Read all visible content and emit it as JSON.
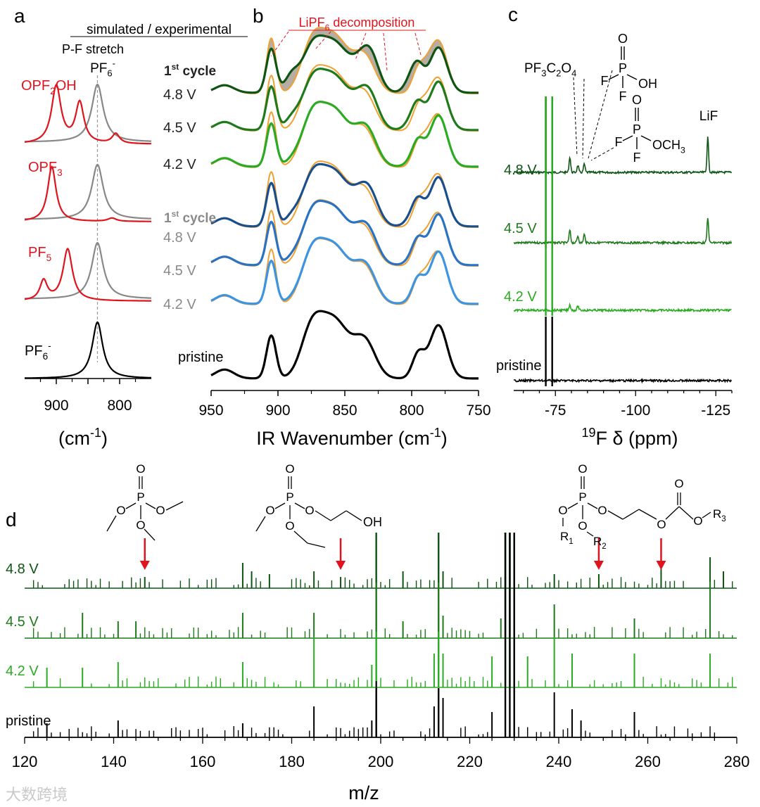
{
  "colors": {
    "black": "#000000",
    "red": "#e0141e",
    "gray": "#888888",
    "orange": "#f0a030",
    "g_dark": "#0e5514",
    "g_mid": "#1f7a1c",
    "g_light": "#2aab22",
    "b_dark": "#1a4f8e",
    "b_mid": "#2a72c4",
    "b_light": "#3b95e3",
    "fill": "#b7ada5"
  },
  "panel_labels": {
    "a": "a",
    "b": "b",
    "c": "c",
    "d": "d"
  },
  "chart_data": [
    {
      "panel": "a",
      "type": "line",
      "title": "simulated / experimental",
      "subtitle": "P-F stretch",
      "xlabel": "(cm-1)",
      "xlim": [
        950,
        750
      ],
      "xticks": [
        900,
        850,
        800
      ],
      "xtick_labels": [
        "900",
        "800"
      ],
      "reference_line": 835,
      "reference_label": "PF6-",
      "series": [
        {
          "name": "OPF2OH",
          "simulated_peaks": [
            900,
            863,
            806
          ],
          "experimental_peak": 835
        },
        {
          "name": "OPF3",
          "simulated_peaks": [
            907,
            812
          ],
          "experimental_peak": 835
        },
        {
          "name": "PF5",
          "simulated_peaks": [
            920,
            882
          ],
          "experimental_peak": 835
        },
        {
          "name": "PF6-",
          "simulated_peaks": [
            835
          ]
        }
      ]
    },
    {
      "panel": "b",
      "type": "line",
      "xlabel": "IR Wavenumber (cm-1)",
      "xlim": [
        950,
        750
      ],
      "xticks": [
        950,
        900,
        850,
        800,
        750
      ],
      "xtick_labels": [
        "950",
        "900",
        "850",
        "800",
        "750"
      ],
      "annotation": "LiPF6 decomposition",
      "groups": [
        {
          "label": "1st cycle",
          "series": [
            "4.8 V",
            "4.5 V",
            "4.2 V"
          ],
          "color": "green"
        },
        {
          "label": "1st cycle",
          "series": [
            "4.8 V",
            "4.5 V",
            "4.2 V"
          ],
          "color": "blue"
        }
      ],
      "reference_series": "pristine",
      "peaks": [
        940,
        905,
        875,
        858,
        835,
        795,
        780
      ]
    },
    {
      "panel": "c",
      "type": "line",
      "xlabel": "19F δ (ppm)",
      "xlim": [
        -62,
        -130
      ],
      "xticks": [
        -75,
        -100,
        -125
      ],
      "xtick_labels": [
        "-75",
        "-100",
        "-125"
      ],
      "series": [
        "4.8 V",
        "4.5 V",
        "4.2 V",
        "pristine"
      ],
      "main_peaks": [
        -72,
        -74
      ],
      "annotations": [
        "PF3C2O4",
        "LiF"
      ],
      "annotation_peaks": {
        "PF3C2O4": -79.5,
        "OPF2OH": -82,
        "OPF2OCH3": -84,
        "LiF": -122.5
      }
    },
    {
      "panel": "d",
      "type": "bar",
      "xlabel": "m/z",
      "xlim": [
        120,
        280
      ],
      "xticks": [
        120,
        140,
        160,
        180,
        200,
        220,
        240,
        260,
        280
      ],
      "xtick_labels": [
        "120",
        "140",
        "160",
        "180",
        "200",
        "220",
        "240",
        "260",
        "280"
      ],
      "series": [
        "4.8 V",
        "4.5 V",
        "4.2 V",
        "pristine"
      ],
      "arrows_mz": [
        147,
        191,
        249,
        263
      ],
      "structure_labels": [
        "OH",
        "R1",
        "R2",
        "R3"
      ]
    }
  ],
  "labels": {
    "a_curves": [
      "OPF2OH",
      "OPF3",
      "PF5",
      "PF6-"
    ],
    "b_cycle_green": "1st cycle",
    "b_cycle_gray": "1st cycle",
    "b_pristine": "pristine",
    "c_pristine": "pristine",
    "d_pristine": "pristine",
    "c_atoms": {
      "o": "O",
      "p": "P",
      "f": "F",
      "oh": "OH",
      "och3": "OCH3"
    }
  },
  "watermark": "大数跨境"
}
